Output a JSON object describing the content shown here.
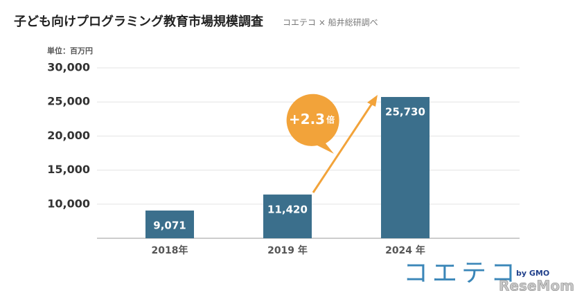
{
  "chart_data": {
    "type": "bar",
    "title": "子ども向けプログラミング教育市場規模調査",
    "subtitle": "コエテコ × 船井総研調べ",
    "unit_label": "単位：百万円",
    "categories": [
      "2018年",
      "2019 年",
      "2024 年"
    ],
    "values": [
      9071,
      11420,
      25730
    ],
    "value_labels": [
      "9,071",
      "11,420",
      "25,730"
    ],
    "color": "#3b6f8c",
    "ylim": [
      5000,
      30000
    ],
    "yticks": [
      {
        "value": 10000,
        "label": "10,000"
      },
      {
        "value": 15000,
        "label": "15,000"
      },
      {
        "value": 20000,
        "label": "20,000"
      },
      {
        "value": 25000,
        "label": "25,000"
      },
      {
        "value": 30000,
        "label": "30,000"
      }
    ],
    "grid": true,
    "annotation": {
      "text": "+2.3",
      "suffix": "倍",
      "color": "#f2a33a"
    },
    "logo": "コエテコ",
    "logo_by": "by GMO",
    "watermark": "ReseMom"
  }
}
